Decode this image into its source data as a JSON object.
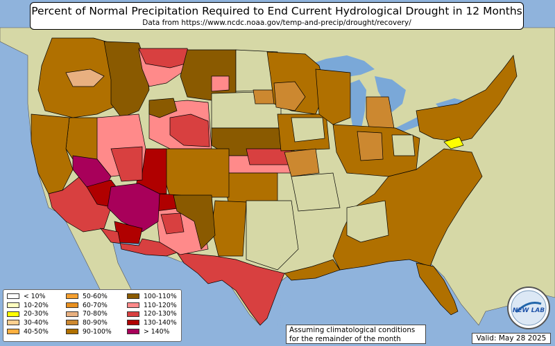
{
  "title": "Percent of Normal Precipitation Required to End Current Hydrological Drought in 12 Months",
  "subtitle": "Data from https://www.ncdc.noaa.gov/temp-and-precip/drought/recovery/",
  "note_line1": "Assuming climatological conditions",
  "note_line2": "for the remainder of the month",
  "valid": "Valid: May 28 2025",
  "logo_text": "NEW LAB",
  "legend": [
    {
      "label": "< 10%",
      "color": "#ffffff"
    },
    {
      "label": "10-20%",
      "color": "#ffffc0"
    },
    {
      "label": "20-30%",
      "color": "#ffff00"
    },
    {
      "label": "30-40%",
      "color": "#ffd090"
    },
    {
      "label": "40-50%",
      "color": "#ffb040"
    },
    {
      "label": "50-60%",
      "color": "#f5a030"
    },
    {
      "label": "60-70%",
      "color": "#e89020"
    },
    {
      "label": "70-80%",
      "color": "#e8b080"
    },
    {
      "label": "80-90%",
      "color": "#cc8830"
    },
    {
      "label": "90-100%",
      "color": "#b07000"
    },
    {
      "label": "100-110%",
      "color": "#8a5a00"
    },
    {
      "label": "110-120%",
      "color": "#ff8a8a"
    },
    {
      "label": "120-130%",
      "color": "#d84040"
    },
    {
      "label": "130-140%",
      "color": "#b00000"
    },
    {
      "label": "> 140%",
      "color": "#a8005a"
    }
  ],
  "colors": {
    "ocean": "#8fb3dc",
    "land_terrain": "#d8d8a8",
    "lakes": "#7aa8d8",
    "outline": "#000000"
  }
}
